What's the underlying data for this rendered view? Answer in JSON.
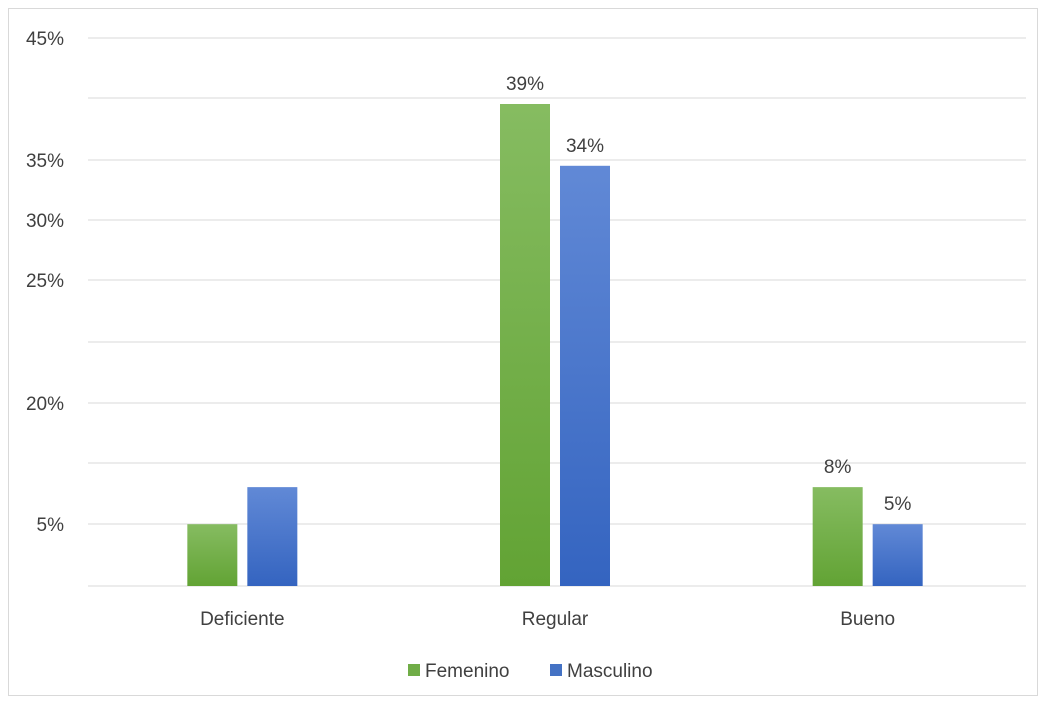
{
  "chart_data": {
    "type": "bar",
    "categories": [
      "Deficiente",
      "Regular",
      "Bueno"
    ],
    "series": [
      {
        "name": "Femenino",
        "values": [
          5,
          39,
          8
        ],
        "data_labels": [
          "",
          "39%",
          "8%"
        ],
        "color": "#70ad47"
      },
      {
        "name": "Masculino",
        "values": [
          8,
          34,
          5
        ],
        "data_labels": [
          "",
          "34%",
          "5%"
        ],
        "color": "#4472c4"
      }
    ],
    "y_tick_labels": [
      "45%",
      "",
      "35%",
      "30%",
      "25%",
      "",
      "20%",
      "",
      "5%",
      ""
    ],
    "title": "",
    "xlabel": "",
    "ylabel": "",
    "grid": true,
    "legend_position": "bottom"
  }
}
